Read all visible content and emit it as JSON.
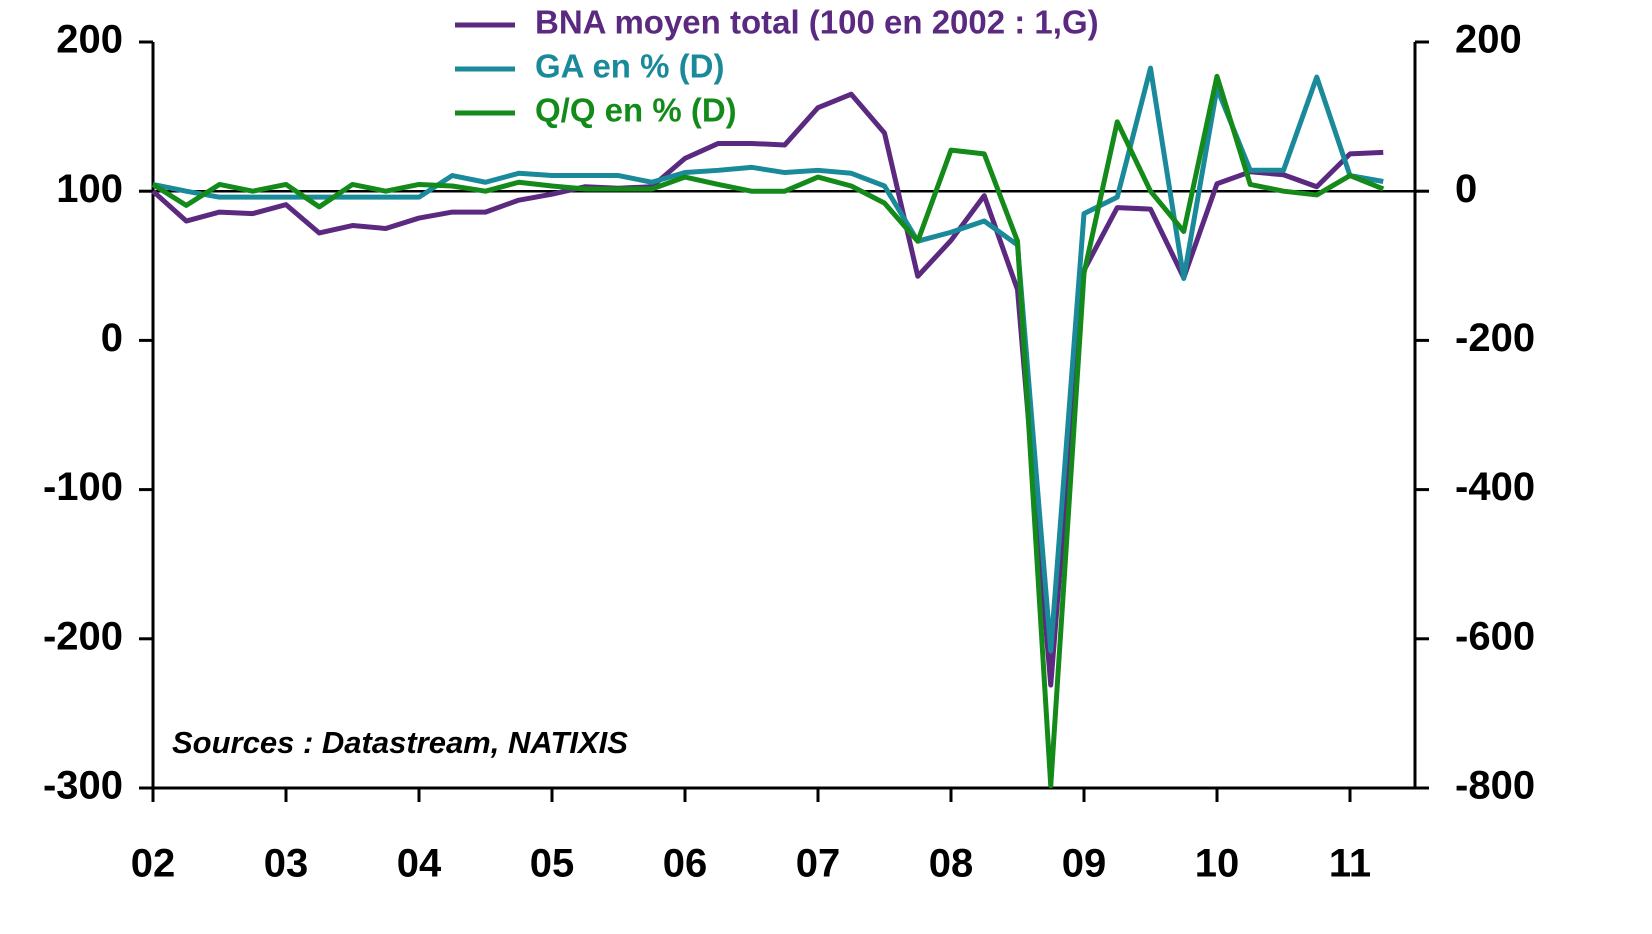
{
  "chart_data": {
    "type": "line",
    "categories": [
      "02",
      null,
      null,
      null,
      "03",
      null,
      null,
      null,
      "04",
      null,
      null,
      null,
      "05",
      null,
      null,
      null,
      "06",
      null,
      null,
      null,
      "07",
      null,
      null,
      null,
      "08",
      null,
      null,
      null,
      "09",
      null,
      null,
      null,
      "10",
      null,
      null,
      null,
      "11",
      null
    ],
    "series": [
      {
        "name": "BNA moyen total (100 en 2002 : 1,G)",
        "color": "#5b2a80",
        "axis": "y",
        "values": [
          100,
          80,
          86,
          85,
          91,
          72,
          77,
          75,
          82,
          86,
          86,
          94,
          98,
          103,
          102,
          103,
          122,
          132,
          132,
          131,
          156,
          165,
          139,
          43,
          67,
          97,
          34,
          -231,
          47,
          89,
          88,
          42,
          105,
          113,
          111,
          103,
          125,
          126
        ]
      },
      {
        "name": "GA en % (D)",
        "color": "#1a8a9a",
        "axis": "y2",
        "values": [
          9,
          0,
          -8,
          -8,
          -8,
          -8,
          -8,
          -8,
          -8,
          21,
          12,
          24,
          21,
          21,
          21,
          12,
          25,
          28,
          32,
          25,
          28,
          24,
          7,
          -67,
          -55,
          -40,
          -72,
          -616,
          -30,
          -8,
          165,
          -117,
          138,
          28,
          28,
          153,
          21,
          13
        ]
      },
      {
        "name": "Q/Q en % (D)",
        "color": "#138a1a",
        "axis": "y2",
        "values": [
          9,
          -19,
          9,
          0,
          9,
          -21,
          9,
          0,
          9,
          7,
          0,
          12,
          7,
          3,
          3,
          3,
          19,
          9,
          0,
          0,
          19,
          7,
          -16,
          -67,
          55,
          50,
          -67,
          -797,
          -110,
          93,
          0,
          -54,
          154,
          9,
          0,
          -5,
          21,
          3
        ]
      }
    ],
    "ylim": [
      -300,
      200
    ],
    "yticks": [
      200,
      100,
      0,
      -100,
      -200,
      -300
    ],
    "y2lim": [
      -800,
      200
    ],
    "y2ticks": [
      200,
      0,
      -200,
      -400,
      -600,
      -800
    ],
    "hline": 100,
    "annotation": "Sources : Datastream, NATIXIS",
    "legend": "top"
  }
}
